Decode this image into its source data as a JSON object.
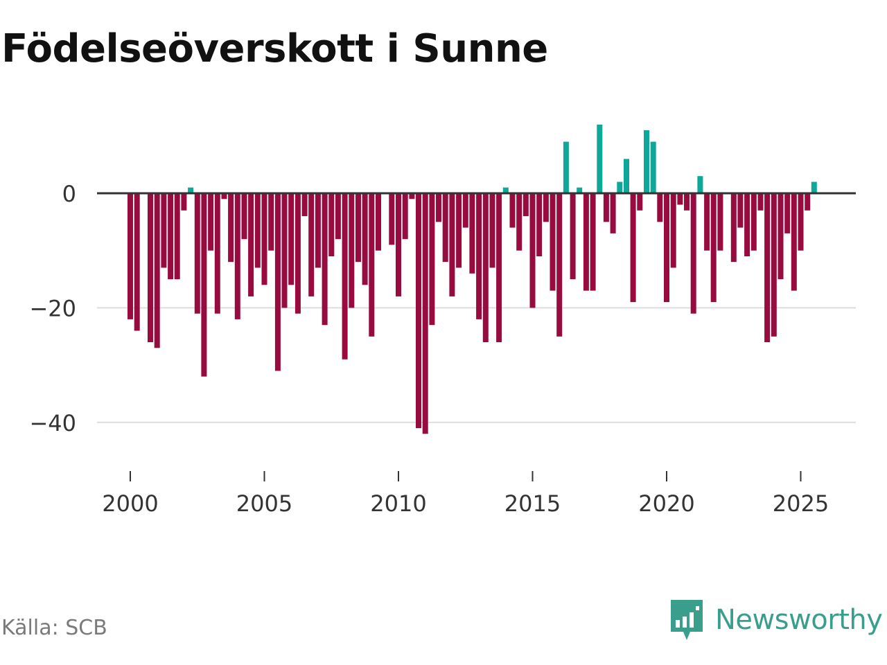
{
  "chart_data": {
    "type": "bar",
    "title": "Födelseöverskott i Sunne",
    "xlabel": "",
    "ylabel": "",
    "x_ticks": [
      "2000",
      "2005",
      "2010",
      "2015",
      "2020",
      "2025"
    ],
    "y_ticks": [
      {
        "value": 0,
        "label": "0"
      },
      {
        "value": -20,
        "label": "−20"
      },
      {
        "value": -40,
        "label": "−40"
      }
    ],
    "ylim": [
      -48,
      13
    ],
    "x_start": 2000.0,
    "x_step": 0.25,
    "colors": {
      "positive": "#0ea89a",
      "negative": "#970b3f",
      "zero_line": "#333333",
      "grid": "#dddddd"
    },
    "values": [
      -22,
      -24,
      null,
      -26,
      -27,
      -13,
      -15,
      -15,
      -3,
      1,
      -21,
      -32,
      -10,
      -21,
      -1,
      -12,
      -22,
      -8,
      -18,
      -13,
      -16,
      -10,
      -31,
      -20,
      -16,
      -21,
      -4,
      -18,
      -13,
      -23,
      -11,
      -8,
      -29,
      -20,
      -12,
      -16,
      -25,
      -10,
      null,
      -9,
      -18,
      -8,
      -1,
      -41,
      -42,
      -23,
      -5,
      -12,
      -18,
      -13,
      -6,
      -14,
      -22,
      -26,
      -13,
      -26,
      1,
      -6,
      -10,
      -4,
      -20,
      -11,
      -5,
      -17,
      -25,
      9,
      -15,
      1,
      -17,
      -17,
      12,
      -5,
      -7,
      2,
      6,
      -19,
      -3,
      11,
      9,
      -5,
      -19,
      -13,
      -2,
      -3,
      -21,
      3,
      -10,
      -19,
      -10,
      null,
      -12,
      -6,
      -11,
      -10,
      -3,
      -26,
      -25,
      -15,
      -7,
      -17,
      -10,
      -3,
      2
    ]
  },
  "footer": {
    "source": "Källa: SCB",
    "brand": "Newsworthy",
    "brand_color": "#3a9e8d"
  }
}
